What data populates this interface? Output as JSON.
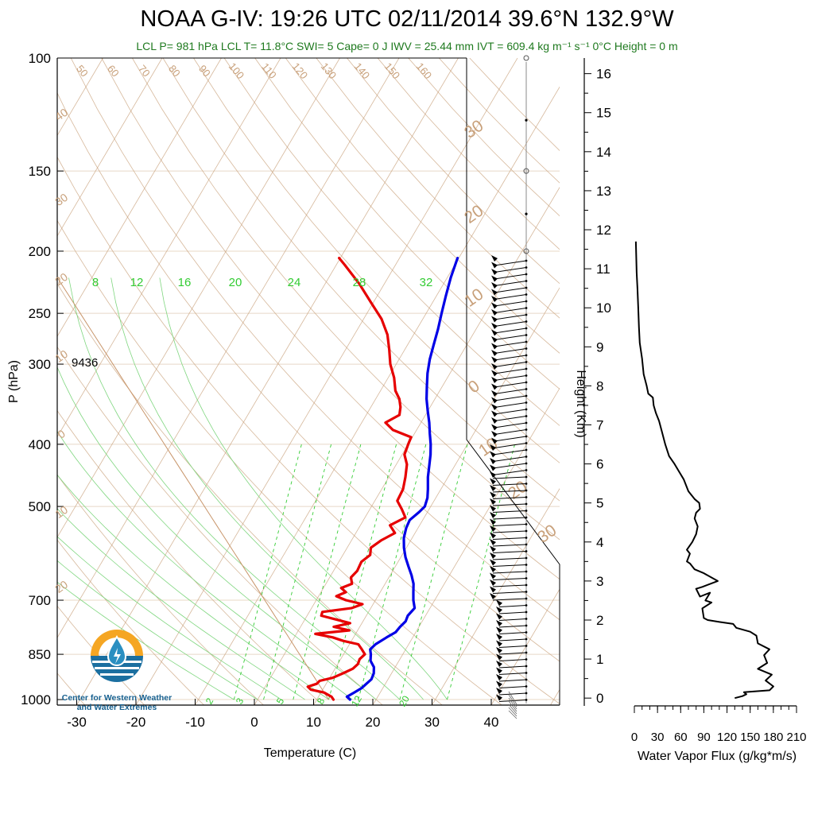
{
  "title": {
    "text": "NOAA G-IV: 19:26 UTC 02/11/2014  39.6°N 132.9°W"
  },
  "subtitle": {
    "text": "LCL P= 981 hPa  LCL T= 11.8°C  SWI= 5  Cape= 0 J  IWV = 25.44 mm  IVT = 609.4 kg m⁻¹ s⁻¹  0°C Height = 0 m"
  },
  "logo": {
    "line1": "Center for Western Weather",
    "line2": "and Water Extremes",
    "colors": {
      "sun": "#f5a623",
      "water": "#1b6fa0",
      "drop": "#2a8fc1"
    }
  },
  "chart_data": [
    {
      "type": "line",
      "subtype": "skew-t",
      "xlabel": "Temperature (C)",
      "ylabel": "P (hPa)",
      "xlim": [
        -34,
        48
      ],
      "ylim": [
        1020,
        100
      ],
      "log_y": true,
      "x_ticks": [
        -30,
        -20,
        -10,
        0,
        10,
        20,
        30,
        40
      ],
      "y_ticks": [
        100,
        150,
        200,
        250,
        300,
        400,
        500,
        700,
        850,
        1000
      ],
      "annotation": "9436",
      "dry_adiabat_labels": [
        "50",
        "60",
        "70",
        "80",
        "90",
        "100",
        "110",
        "120",
        "130",
        "140",
        "150",
        "160"
      ],
      "temp_line_labels": [
        "40",
        "30",
        "20",
        "10",
        "0",
        "10",
        "20",
        "30",
        "20",
        "10",
        "0",
        "10",
        "20",
        "30"
      ],
      "moist_adiabat_labels": [
        "8",
        "12",
        "16",
        "20",
        "24",
        "28",
        "32"
      ],
      "mixing_ratio_labels": [
        "2",
        "3",
        "5",
        "8",
        "12",
        "20"
      ],
      "colors": {
        "temperature": "#e60000",
        "dewpoint": "#0000e6",
        "grid": "#c8a07a",
        "moist": "#33cc33"
      },
      "series": [
        {
          "name": "temperature",
          "points": [
            [
              1000,
              12.8
            ],
            [
              990,
              12.2
            ],
            [
              975,
              10.5
            ],
            [
              965,
              8.0
            ],
            [
              955,
              7.2
            ],
            [
              945,
              8.4
            ],
            [
              935,
              8.6
            ],
            [
              925,
              10.5
            ],
            [
              910,
              11.8
            ],
            [
              895,
              13.0
            ],
            [
              880,
              13.4
            ],
            [
              865,
              13.2
            ],
            [
              850,
              13.6
            ],
            [
              835,
              12.6
            ],
            [
              820,
              11.5
            ],
            [
              810,
              8.6
            ],
            [
              800,
              6.5
            ],
            [
              790,
              3.2
            ],
            [
              780,
              8.6
            ],
            [
              770,
              5.6
            ],
            [
              760,
              8.0
            ],
            [
              750,
              5.2
            ],
            [
              740,
              2.4
            ],
            [
              730,
              2.2
            ],
            [
              720,
              6.8
            ],
            [
              710,
              8.2
            ],
            [
              700,
              5.0
            ],
            [
              690,
              3.0
            ],
            [
              680,
              4.2
            ],
            [
              670,
              3.0
            ],
            [
              660,
              4.4
            ],
            [
              645,
              3.6
            ],
            [
              630,
              4.0
            ],
            [
              610,
              3.8
            ],
            [
              595,
              4.6
            ],
            [
              580,
              4.0
            ],
            [
              565,
              5.0
            ],
            [
              550,
              6.6
            ],
            [
              535,
              5.0
            ],
            [
              520,
              6.8
            ],
            [
              505,
              5.4
            ],
            [
              490,
              3.8
            ],
            [
              470,
              3.6
            ],
            [
              450,
              2.8
            ],
            [
              430,
              1.8
            ],
            [
              415,
              0.4
            ],
            [
              400,
              0.0
            ],
            [
              390,
              -0.2
            ],
            [
              380,
              -4.0
            ],
            [
              370,
              -6.0
            ],
            [
              360,
              -4.4
            ],
            [
              350,
              -5.0
            ],
            [
              340,
              -6.0
            ],
            [
              330,
              -7.5
            ],
            [
              315,
              -9.0
            ],
            [
              300,
              -11.0
            ],
            [
              285,
              -12.6
            ],
            [
              270,
              -14.4
            ],
            [
              255,
              -17.0
            ],
            [
              240,
              -20.5
            ],
            [
              225,
              -24.2
            ],
            [
              210,
              -28.6
            ],
            [
              205,
              -30.2
            ]
          ]
        },
        {
          "name": "dewpoint",
          "points": [
            [
              1000,
              15.6
            ],
            [
              990,
              14.8
            ],
            [
              975,
              15.6
            ],
            [
              960,
              16.4
            ],
            [
              945,
              16.8
            ],
            [
              930,
              17.2
            ],
            [
              910,
              17.0
            ],
            [
              890,
              16.4
            ],
            [
              870,
              15.2
            ],
            [
              850,
              14.6
            ],
            [
              835,
              14.0
            ],
            [
              820,
              14.4
            ],
            [
              800,
              15.6
            ],
            [
              785,
              16.6
            ],
            [
              770,
              16.8
            ],
            [
              755,
              17.2
            ],
            [
              740,
              17.0
            ],
            [
              720,
              17.4
            ],
            [
              700,
              16.4
            ],
            [
              680,
              15.6
            ],
            [
              660,
              14.8
            ],
            [
              640,
              13.6
            ],
            [
              620,
              12.2
            ],
            [
              600,
              10.8
            ],
            [
              580,
              9.6
            ],
            [
              560,
              8.6
            ],
            [
              540,
              8.0
            ],
            [
              525,
              7.8
            ],
            [
              510,
              8.6
            ],
            [
              500,
              9.0
            ],
            [
              485,
              8.6
            ],
            [
              470,
              7.8
            ],
            [
              450,
              6.6
            ],
            [
              430,
              5.6
            ],
            [
              415,
              4.8
            ],
            [
              400,
              3.8
            ],
            [
              385,
              2.6
            ],
            [
              370,
              1.4
            ],
            [
              355,
              0.0
            ],
            [
              340,
              -1.4
            ],
            [
              325,
              -2.6
            ],
            [
              310,
              -3.8
            ],
            [
              295,
              -4.8
            ],
            [
              280,
              -5.6
            ],
            [
              265,
              -6.4
            ],
            [
              250,
              -7.4
            ],
            [
              235,
              -8.4
            ],
            [
              220,
              -9.4
            ],
            [
              205,
              -10.2
            ]
          ]
        }
      ]
    },
    {
      "type": "line",
      "xlabel": "Water Vapor Flux (g/kg*m/s)",
      "ylabel": "Height (Km)",
      "xlim": [
        0,
        210
      ],
      "ylim": [
        -0.2,
        16.4
      ],
      "x_ticks": [
        0,
        30,
        60,
        90,
        120,
        150,
        180,
        210
      ],
      "y_ticks": [
        0,
        1,
        2,
        3,
        4,
        5,
        6,
        7,
        8,
        9,
        10,
        11,
        12,
        13,
        14,
        15,
        16
      ],
      "colors": {
        "line": "#000000"
      },
      "series": [
        {
          "name": "water-vapor-flux",
          "points": [
            [
              130,
              0.0
            ],
            [
              140,
              0.05
            ],
            [
              145,
              0.1
            ],
            [
              142,
              0.15
            ],
            [
              175,
              0.2
            ],
            [
              180,
              0.3
            ],
            [
              170,
              0.45
            ],
            [
              178,
              0.6
            ],
            [
              160,
              0.75
            ],
            [
              172,
              0.9
            ],
            [
              168,
              1.1
            ],
            [
              175,
              1.25
            ],
            [
              160,
              1.4
            ],
            [
              158,
              1.6
            ],
            [
              150,
              1.7
            ],
            [
              132,
              1.8
            ],
            [
              128,
              1.9
            ],
            [
              110,
              1.95
            ],
            [
              95,
              2.0
            ],
            [
              90,
              2.05
            ],
            [
              88,
              2.3
            ],
            [
              100,
              2.45
            ],
            [
              92,
              2.5
            ],
            [
              98,
              2.7
            ],
            [
              85,
              2.6
            ],
            [
              80,
              2.8
            ],
            [
              88,
              2.85
            ],
            [
              108,
              3.0
            ],
            [
              90,
              3.2
            ],
            [
              78,
              3.3
            ],
            [
              72,
              3.45
            ],
            [
              68,
              3.5
            ],
            [
              72,
              3.7
            ],
            [
              68,
              3.8
            ],
            [
              75,
              4.0
            ],
            [
              80,
              4.2
            ],
            [
              82,
              4.4
            ],
            [
              78,
              4.6
            ],
            [
              80,
              4.75
            ],
            [
              85,
              4.85
            ],
            [
              84,
              5.0
            ],
            [
              78,
              5.1
            ],
            [
              70,
              5.3
            ],
            [
              64,
              5.6
            ],
            [
              58,
              5.8
            ],
            [
              52,
              6.0
            ],
            [
              45,
              6.2
            ],
            [
              40,
              6.5
            ],
            [
              36,
              6.8
            ],
            [
              32,
              7.1
            ],
            [
              28,
              7.3
            ],
            [
              25,
              7.5
            ],
            [
              24,
              7.7
            ],
            [
              18,
              7.8
            ],
            [
              16,
              8.0
            ],
            [
              12,
              8.3
            ],
            [
              10,
              8.7
            ],
            [
              7,
              9.1
            ],
            [
              6,
              9.5
            ],
            [
              5,
              10.0
            ],
            [
              4,
              10.5
            ],
            [
              3,
              10.9
            ],
            [
              2.5,
              11.3
            ],
            [
              2,
              11.7
            ]
          ]
        }
      ]
    }
  ]
}
